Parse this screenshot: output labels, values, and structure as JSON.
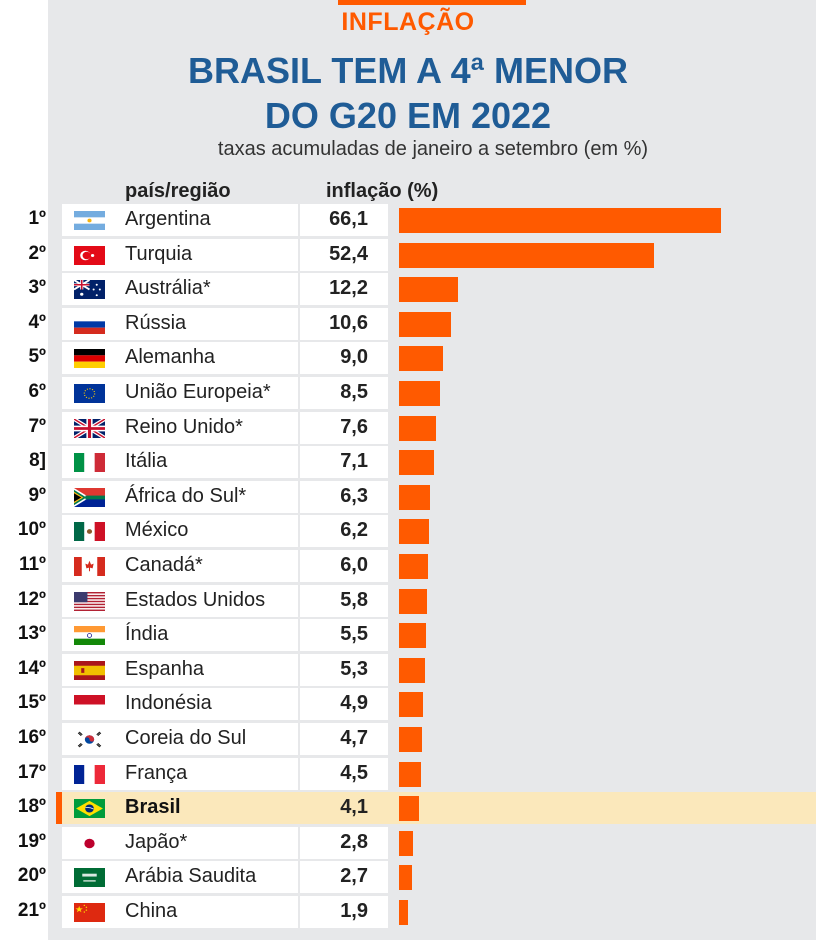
{
  "kicker": "INFLAÇÃO",
  "title_line1": "BRASIL TEM A 4ª MENOR",
  "title_line2": "DO G20 EM 2022",
  "subtitle": "taxas acumuladas de janeiro a setembro (em %)",
  "header_country": "país/região",
  "header_value": "inflação (%)",
  "colors": {
    "accent": "#ff5a00",
    "title": "#1f5c96",
    "highlight": "#fbe8bb"
  },
  "chart_data": {
    "type": "bar",
    "orientation": "horizontal",
    "title": "BRASIL TEM A 4ª MENOR DO G20 EM 2022",
    "subtitle": "taxas acumuladas de janeiro a setembro (em %)",
    "xlabel": "inflação (%)",
    "ylabel": "país/região",
    "highlight": "Brasil",
    "rows": [
      {
        "rank": "1º",
        "country": "Argentina",
        "value": 66.1,
        "label": "66,1",
        "flag": "flag-argentina"
      },
      {
        "rank": "2º",
        "country": "Turquia",
        "value": 52.4,
        "label": "52,4",
        "flag": "flag-turkey"
      },
      {
        "rank": "3º",
        "country": "Austrália*",
        "value": 12.2,
        "label": "12,2",
        "flag": "flag-australia"
      },
      {
        "rank": "4º",
        "country": "Rússia",
        "value": 10.6,
        "label": "10,6",
        "flag": "flag-russia"
      },
      {
        "rank": "5º",
        "country": "Alemanha",
        "value": 9.0,
        "label": "9,0",
        "flag": "flag-germany"
      },
      {
        "rank": "6º",
        "country": "União Europeia*",
        "value": 8.5,
        "label": "8,5",
        "flag": "flag-eu"
      },
      {
        "rank": "7º",
        "country": "Reino Unido*",
        "value": 7.6,
        "label": "7,6",
        "flag": "flag-uk"
      },
      {
        "rank": "8]",
        "country": "Itália",
        "value": 7.1,
        "label": "7,1",
        "flag": "flag-italy"
      },
      {
        "rank": "9º",
        "country": "África do Sul*",
        "value": 6.3,
        "label": "6,3",
        "flag": "flag-south-africa"
      },
      {
        "rank": "10º",
        "country": "México",
        "value": 6.2,
        "label": "6,2",
        "flag": "flag-mexico"
      },
      {
        "rank": "11º",
        "country": "Canadá*",
        "value": 6.0,
        "label": "6,0",
        "flag": "flag-canada"
      },
      {
        "rank": "12º",
        "country": "Estados Unidos",
        "value": 5.8,
        "label": "5,8",
        "flag": "flag-usa"
      },
      {
        "rank": "13º",
        "country": "Índia",
        "value": 5.5,
        "label": "5,5",
        "flag": "flag-india"
      },
      {
        "rank": "14º",
        "country": "Espanha",
        "value": 5.3,
        "label": "5,3",
        "flag": "flag-spain"
      },
      {
        "rank": "15º",
        "country": "Indonésia",
        "value": 4.9,
        "label": "4,9",
        "flag": "flag-indonesia"
      },
      {
        "rank": "16º",
        "country": "Coreia do Sul",
        "value": 4.7,
        "label": "4,7",
        "flag": "flag-south-korea"
      },
      {
        "rank": "17º",
        "country": "França",
        "value": 4.5,
        "label": "4,5",
        "flag": "flag-france"
      },
      {
        "rank": "18º",
        "country": "Brasil",
        "value": 4.1,
        "label": "4,1",
        "flag": "flag-brazil"
      },
      {
        "rank": "19º",
        "country": "Japão*",
        "value": 2.8,
        "label": "2,8",
        "flag": "flag-japan"
      },
      {
        "rank": "20º",
        "country": "Arábia Saudita",
        "value": 2.7,
        "label": "2,7",
        "flag": "flag-saudi-arabia"
      },
      {
        "rank": "21º",
        "country": "China",
        "value": 1.9,
        "label": "1,9",
        "flag": "flag-china"
      }
    ]
  }
}
